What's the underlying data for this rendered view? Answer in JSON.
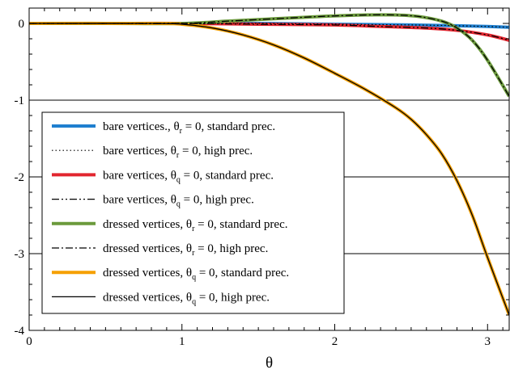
{
  "chart_data": {
    "type": "line",
    "title": "",
    "xlabel": "θ",
    "ylabel": "",
    "xlim": [
      0,
      3.1416
    ],
    "ylim": [
      -4,
      0.2
    ],
    "xticks": [
      0,
      1,
      2,
      3
    ],
    "yticks": [
      0,
      -1,
      -2,
      -3,
      -4
    ],
    "grid": "horizontal at y = -1, -2, -3",
    "legend_placement": "lower-left",
    "series": [
      {
        "name_parts": [
          "bare vertices., θ",
          "r",
          " = 0, standard prec."
        ],
        "color": "#1f7fcf",
        "style": "solid-thick",
        "x": [
          0,
          0.5,
          1.0,
          1.5,
          2.0,
          2.5,
          2.8,
          3.0,
          3.1416
        ],
        "y": [
          0.0,
          0.0,
          0.0,
          0.0,
          -0.01,
          -0.02,
          -0.03,
          -0.04,
          -0.05
        ]
      },
      {
        "name_parts": [
          "bare vertices, θ",
          "r",
          " = 0, high prec."
        ],
        "color": "#000000",
        "style": "dotted",
        "x": [
          0,
          0.5,
          1.0,
          1.5,
          2.0,
          2.5,
          2.8,
          3.0,
          3.1416
        ],
        "y": [
          0.0,
          0.0,
          0.0,
          0.0,
          -0.01,
          -0.02,
          -0.03,
          -0.04,
          -0.05
        ]
      },
      {
        "name_parts": [
          "bare vertices, θ",
          "q",
          " = 0, standard prec."
        ],
        "color": "#e2262f",
        "style": "solid-thick",
        "x": [
          0,
          0.5,
          1.0,
          1.5,
          2.0,
          2.3,
          2.6,
          2.8,
          3.0,
          3.1416
        ],
        "y": [
          0.0,
          0.0,
          0.0,
          -0.01,
          -0.02,
          -0.04,
          -0.06,
          -0.09,
          -0.15,
          -0.22
        ]
      },
      {
        "name_parts": [
          "bare vertices, θ",
          "q",
          " = 0, high prec."
        ],
        "color": "#000000",
        "style": "dash-dot-dot",
        "x": [
          0,
          0.5,
          1.0,
          1.5,
          2.0,
          2.3,
          2.6,
          2.8,
          3.0,
          3.1416
        ],
        "y": [
          0.0,
          0.0,
          0.0,
          -0.01,
          -0.02,
          -0.04,
          -0.06,
          -0.09,
          -0.15,
          -0.22
        ]
      },
      {
        "name_parts": [
          "dressed vertices, θ",
          "r",
          " = 0, standard prec."
        ],
        "color": "#6b9a3c",
        "style": "solid-thick",
        "x": [
          0,
          0.5,
          1.0,
          1.3,
          1.6,
          1.9,
          2.2,
          2.4,
          2.55,
          2.7,
          2.8,
          2.9,
          3.0,
          3.1416
        ],
        "y": [
          0.0,
          0.0,
          0.0,
          0.03,
          0.06,
          0.09,
          0.11,
          0.11,
          0.09,
          0.03,
          -0.06,
          -0.22,
          -0.48,
          -0.95
        ]
      },
      {
        "name_parts": [
          "dressed vertices, θ",
          "r",
          " = 0, high prec."
        ],
        "color": "#000000",
        "style": "dash-dot",
        "x": [
          0,
          0.5,
          1.0,
          1.3,
          1.6,
          1.9,
          2.2,
          2.4,
          2.55,
          2.7,
          2.8,
          2.9,
          3.0,
          3.1416
        ],
        "y": [
          0.0,
          0.0,
          0.0,
          0.03,
          0.06,
          0.09,
          0.11,
          0.11,
          0.09,
          0.03,
          -0.06,
          -0.22,
          -0.48,
          -0.95
        ]
      },
      {
        "name_parts": [
          "dressed vertices, θ",
          "q",
          " = 0, standard prec."
        ],
        "color": "#f5a000",
        "style": "solid-thick",
        "x": [
          0,
          0.8,
          1.0,
          1.2,
          1.4,
          1.6,
          1.8,
          2.0,
          2.2,
          2.4,
          2.5,
          2.6,
          2.7,
          2.8,
          2.9,
          3.0,
          3.1416
        ],
        "y": [
          0.0,
          0.0,
          -0.01,
          -0.06,
          -0.15,
          -0.28,
          -0.45,
          -0.65,
          -0.86,
          -1.1,
          -1.25,
          -1.45,
          -1.7,
          -2.05,
          -2.5,
          -3.05,
          -3.8
        ]
      },
      {
        "name_parts": [
          "dressed vertices, θ",
          "q",
          " = 0, high prec."
        ],
        "color": "#000000",
        "style": "solid-thin",
        "x": [
          0,
          0.8,
          1.0,
          1.2,
          1.4,
          1.6,
          1.8,
          2.0,
          2.2,
          2.4,
          2.5,
          2.6,
          2.7,
          2.8,
          2.9,
          3.0,
          3.1416
        ],
        "y": [
          0.0,
          0.0,
          -0.01,
          -0.06,
          -0.15,
          -0.28,
          -0.45,
          -0.65,
          -0.86,
          -1.1,
          -1.25,
          -1.45,
          -1.7,
          -2.05,
          -2.5,
          -3.05,
          -3.8
        ]
      }
    ]
  }
}
